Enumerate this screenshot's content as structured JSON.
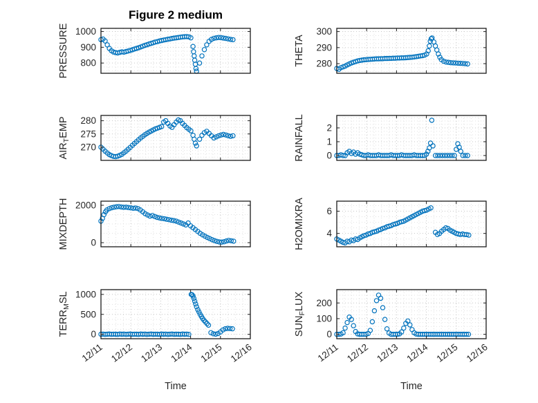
{
  "figure": {
    "title": "Figure 2 medium",
    "xlabel": "Time",
    "marker_color": "#0072BD",
    "x_ticks": [
      0,
      1,
      2,
      3,
      4,
      5
    ],
    "x_tick_labels": [
      "12/11",
      "12/12",
      "12/13",
      "12/14",
      "12/15",
      "12/16"
    ]
  },
  "chart_data": [
    {
      "type": "scatter",
      "ylabel": "PRESSURE",
      "ylabel_parts": [
        {
          "t": "PRESSURE"
        }
      ],
      "yticks": [
        800,
        900,
        1000
      ],
      "ylim": [
        735,
        1020
      ],
      "xlim": [
        0,
        5
      ],
      "x": [
        0,
        0.07,
        0.14,
        0.21,
        0.28,
        0.35,
        0.42,
        0.49,
        0.56,
        0.63,
        0.7,
        0.77,
        0.84,
        0.91,
        0.98,
        1.05,
        1.12,
        1.19,
        1.26,
        1.33,
        1.4,
        1.47,
        1.54,
        1.61,
        1.68,
        1.75,
        1.82,
        1.89,
        1.96,
        2.03,
        2.1,
        2.17,
        2.24,
        2.31,
        2.38,
        2.45,
        2.52,
        2.59,
        2.66,
        2.73,
        2.8,
        2.87,
        2.94,
        3.01,
        3.08,
        3.1,
        3.12,
        3.14,
        3.16,
        3.18,
        3.2,
        3.3,
        3.38,
        3.46,
        3.54,
        3.62,
        3.7,
        3.78,
        3.86,
        3.94,
        4.02,
        4.1,
        4.18,
        4.26,
        4.34,
        4.42
      ],
      "y": [
        948,
        952,
        940,
        915,
        893,
        878,
        870,
        866,
        864,
        868,
        871,
        869,
        873,
        876,
        880,
        884,
        889,
        893,
        897,
        902,
        907,
        912,
        916,
        921,
        925,
        929,
        933,
        936,
        940,
        943,
        946,
        948,
        951,
        953,
        956,
        958,
        960,
        962,
        964,
        966,
        967,
        968,
        966,
        960,
        905,
        872,
        845,
        818,
        792,
        765,
        748,
        800,
        845,
        885,
        915,
        938,
        950,
        957,
        960,
        962,
        961,
        958,
        956,
        953,
        950,
        948
      ]
    },
    {
      "type": "scatter",
      "ylabel": "THETA",
      "ylabel_parts": [
        {
          "t": "THETA"
        }
      ],
      "yticks": [
        280,
        290,
        300
      ],
      "ylim": [
        274,
        302
      ],
      "xlim": [
        0,
        5
      ],
      "x": [
        0,
        0.07,
        0.14,
        0.21,
        0.28,
        0.35,
        0.42,
        0.49,
        0.56,
        0.63,
        0.7,
        0.77,
        0.84,
        0.91,
        0.98,
        1.05,
        1.12,
        1.19,
        1.26,
        1.33,
        1.4,
        1.47,
        1.54,
        1.61,
        1.68,
        1.75,
        1.82,
        1.89,
        1.96,
        2.03,
        2.1,
        2.17,
        2.24,
        2.31,
        2.38,
        2.45,
        2.52,
        2.59,
        2.66,
        2.73,
        2.8,
        2.87,
        2.94,
        3.01,
        3.06,
        3.1,
        3.13,
        3.16,
        3.19,
        3.25,
        3.3,
        3.35,
        3.4,
        3.45,
        3.5,
        3.58,
        3.66,
        3.74,
        3.82,
        3.9,
        3.98,
        4.06,
        4.14,
        4.22,
        4.3,
        4.38
      ],
      "y": [
        277,
        276.5,
        277.5,
        278,
        278.5,
        279.2,
        279.8,
        280.4,
        280.9,
        281.3,
        281.7,
        282,
        282.2,
        282.4,
        282.5,
        282.6,
        282.7,
        282.8,
        282.9,
        283,
        283,
        283.1,
        283.1,
        283.2,
        283.2,
        283.3,
        283.3,
        283.4,
        283.4,
        283.5,
        283.5,
        283.6,
        283.6,
        283.7,
        283.8,
        283.9,
        284,
        284.2,
        284.4,
        284.6,
        284.8,
        285,
        285.3,
        286,
        288,
        291,
        294,
        295.5,
        296,
        293.5,
        291,
        288.5,
        286,
        284,
        282.5,
        281.5,
        281,
        280.8,
        280.6,
        280.5,
        280.4,
        280.3,
        280.2,
        280.1,
        280,
        279.8
      ]
    },
    {
      "type": "scatter",
      "ylabel": "AIR_TEMP",
      "ylabel_parts": [
        {
          "t": "AIR"
        },
        {
          "t": "T",
          "sub": true
        },
        {
          "t": "EMP"
        }
      ],
      "yticks": [
        270,
        275,
        280
      ],
      "ylim": [
        265,
        282
      ],
      "xlim": [
        0,
        5
      ],
      "x": [
        0,
        0.07,
        0.14,
        0.21,
        0.28,
        0.35,
        0.42,
        0.49,
        0.56,
        0.63,
        0.7,
        0.77,
        0.84,
        0.91,
        0.98,
        1.05,
        1.12,
        1.19,
        1.26,
        1.33,
        1.4,
        1.47,
        1.54,
        1.61,
        1.68,
        1.75,
        1.82,
        1.89,
        1.96,
        2.03,
        2.1,
        2.17,
        2.24,
        2.31,
        2.38,
        2.45,
        2.52,
        2.59,
        2.66,
        2.73,
        2.8,
        2.87,
        2.94,
        3.01,
        3.08,
        3.12,
        3.16,
        3.2,
        3.3,
        3.38,
        3.46,
        3.54,
        3.62,
        3.7,
        3.78,
        3.86,
        3.94,
        4.02,
        4.1,
        4.18,
        4.26,
        4.34,
        4.42
      ],
      "y": [
        270,
        269.3,
        268.5,
        267.8,
        267.2,
        266.8,
        266.5,
        266.4,
        266.6,
        266.9,
        267.3,
        267.9,
        268.5,
        269.2,
        269.9,
        270.7,
        271.4,
        272.1,
        272.8,
        273.5,
        274.1,
        274.7,
        275.2,
        275.7,
        276.1,
        276.5,
        276.9,
        277.2,
        277.5,
        277.8,
        279.5,
        280,
        279,
        278,
        277.5,
        278.5,
        279.5,
        280.3,
        280,
        279,
        278.2,
        277.4,
        276.8,
        276.2,
        274.5,
        273,
        271.5,
        270.5,
        273,
        274.5,
        275.5,
        276,
        275.2,
        274.3,
        273.5,
        273.9,
        274.3,
        274.6,
        274.8,
        274.6,
        274.3,
        274.1,
        274.3
      ]
    },
    {
      "type": "scatter",
      "ylabel": "RAINFALL",
      "ylabel_parts": [
        {
          "t": "RAINFALL"
        }
      ],
      "yticks": [
        0,
        1,
        2
      ],
      "ylim": [
        -0.35,
        2.9
      ],
      "xlim": [
        0,
        5
      ],
      "x": [
        0,
        0.07,
        0.14,
        0.21,
        0.28,
        0.35,
        0.42,
        0.49,
        0.56,
        0.63,
        0.7,
        0.77,
        0.84,
        0.91,
        0.98,
        1.05,
        1.12,
        1.19,
        1.26,
        1.33,
        1.4,
        1.47,
        1.54,
        1.61,
        1.68,
        1.75,
        1.82,
        1.89,
        1.96,
        2.03,
        2.1,
        2.17,
        2.24,
        2.31,
        2.38,
        2.45,
        2.52,
        2.59,
        2.66,
        2.73,
        2.8,
        2.87,
        2.94,
        3,
        3.05,
        3.1,
        3.14,
        3.18,
        3.22,
        3.3,
        3.38,
        3.46,
        3.54,
        3.62,
        3.7,
        3.78,
        3.86,
        3.94,
        4,
        4.05,
        4.1,
        4.15,
        4.22,
        4.3,
        4.38
      ],
      "y": [
        0,
        0,
        0.05,
        0,
        0,
        0.2,
        0.3,
        0.15,
        0.25,
        0.1,
        0.2,
        0.1,
        0.05,
        0,
        0,
        0.05,
        0,
        0,
        0,
        0,
        0.05,
        0,
        0,
        0,
        0,
        0,
        0.05,
        0,
        0,
        0,
        0,
        0.05,
        0,
        0,
        0,
        0,
        0,
        0.05,
        0,
        0,
        0,
        0,
        0,
        0.1,
        0.3,
        0.55,
        0.9,
        2.55,
        0.7,
        0,
        0,
        0,
        0,
        0,
        0,
        0,
        0,
        0,
        0.45,
        0.85,
        0.6,
        0.3,
        0,
        0,
        0
      ]
    },
    {
      "type": "scatter",
      "ylabel": "MIXDEPTH",
      "ylabel_parts": [
        {
          "t": "MIXDEPTH"
        }
      ],
      "yticks": [
        0,
        2000
      ],
      "ylim": [
        -220,
        2220
      ],
      "xlim": [
        0,
        5
      ],
      "x": [
        0,
        0.05,
        0.1,
        0.15,
        0.2,
        0.28,
        0.36,
        0.44,
        0.52,
        0.6,
        0.68,
        0.76,
        0.84,
        0.92,
        1,
        1.08,
        1.16,
        1.24,
        1.32,
        1.4,
        1.48,
        1.56,
        1.64,
        1.72,
        1.8,
        1.88,
        1.96,
        2.04,
        2.12,
        2.2,
        2.28,
        2.36,
        2.44,
        2.52,
        2.6,
        2.68,
        2.76,
        2.84,
        2.92,
        3,
        3.08,
        3.16,
        3.24,
        3.32,
        3.4,
        3.48,
        3.56,
        3.64,
        3.72,
        3.8,
        3.88,
        3.96,
        4.04,
        4.12,
        4.2,
        4.28,
        4.36,
        4.44
      ],
      "y": [
        1150,
        1300,
        1500,
        1650,
        1750,
        1820,
        1870,
        1900,
        1920,
        1930,
        1910,
        1890,
        1900,
        1880,
        1860,
        1840,
        1850,
        1820,
        1750,
        1650,
        1550,
        1480,
        1420,
        1450,
        1400,
        1350,
        1320,
        1300,
        1280,
        1250,
        1230,
        1200,
        1180,
        1150,
        1100,
        1050,
        1000,
        950,
        1050,
        900,
        800,
        700,
        600,
        500,
        420,
        350,
        280,
        220,
        160,
        110,
        70,
        40,
        30,
        50,
        90,
        120,
        100,
        80
      ]
    },
    {
      "type": "scatter",
      "ylabel": "H2OMIXRA",
      "ylabel_parts": [
        {
          "t": "H2OMIXRA"
        }
      ],
      "yticks": [
        4,
        6
      ],
      "ylim": [
        2.8,
        6.9
      ],
      "xlim": [
        0,
        5
      ],
      "x": [
        0,
        0.07,
        0.14,
        0.21,
        0.28,
        0.35,
        0.42,
        0.49,
        0.56,
        0.63,
        0.7,
        0.77,
        0.84,
        0.91,
        0.98,
        1.05,
        1.12,
        1.19,
        1.26,
        1.33,
        1.4,
        1.47,
        1.54,
        1.61,
        1.68,
        1.75,
        1.82,
        1.89,
        1.96,
        2.03,
        2.1,
        2.17,
        2.24,
        2.31,
        2.38,
        2.45,
        2.52,
        2.59,
        2.66,
        2.73,
        2.8,
        2.87,
        2.94,
        3.01,
        3.08,
        3.15,
        3.3,
        3.37,
        3.44,
        3.51,
        3.58,
        3.65,
        3.72,
        3.79,
        3.86,
        3.93,
        4,
        4.07,
        4.14,
        4.21,
        4.28,
        4.35,
        4.42
      ],
      "y": [
        3.5,
        3.4,
        3.3,
        3.2,
        3.15,
        3.3,
        3.25,
        3.4,
        3.35,
        3.5,
        3.45,
        3.6,
        3.7,
        3.8,
        3.85,
        3.95,
        4,
        4.1,
        4.15,
        4.2,
        4.3,
        4.35,
        4.45,
        4.5,
        4.6,
        4.65,
        4.7,
        4.8,
        4.85,
        4.9,
        5,
        5.05,
        5.1,
        5.2,
        5.3,
        5.4,
        5.5,
        5.6,
        5.7,
        5.8,
        5.9,
        6,
        6.05,
        6.1,
        6.2,
        6.3,
        4.1,
        3.9,
        4,
        4.2,
        4.35,
        4.5,
        4.45,
        4.3,
        4.2,
        4.1,
        4,
        3.95,
        3.9,
        3.95,
        3.9,
        3.9,
        3.85
      ]
    },
    {
      "type": "scatter",
      "ylabel": "TERR_MSL",
      "ylabel_parts": [
        {
          "t": "TERR"
        },
        {
          "t": "M",
          "sub": true
        },
        {
          "t": "SL"
        }
      ],
      "yticks": [
        0,
        500,
        1000
      ],
      "ylim": [
        -110,
        1120
      ],
      "xlim": [
        0,
        5
      ],
      "x": [
        0,
        0.07,
        0.14,
        0.21,
        0.28,
        0.35,
        0.42,
        0.49,
        0.56,
        0.63,
        0.7,
        0.77,
        0.84,
        0.91,
        0.98,
        1.05,
        1.12,
        1.19,
        1.26,
        1.33,
        1.4,
        1.47,
        1.54,
        1.61,
        1.68,
        1.75,
        1.82,
        1.89,
        1.96,
        2.03,
        2.1,
        2.17,
        2.24,
        2.31,
        2.38,
        2.45,
        2.52,
        2.59,
        2.66,
        2.73,
        2.8,
        2.87,
        2.94,
        3.02,
        3.05,
        3.08,
        3.11,
        3.14,
        3.17,
        3.2,
        3.24,
        3.28,
        3.32,
        3.36,
        3.4,
        3.45,
        3.5,
        3.55,
        3.6,
        3.68,
        3.76,
        3.84,
        3.92,
        4,
        4.08,
        4.16,
        4.24,
        4.32,
        4.4
      ],
      "y": [
        2,
        6,
        0,
        4,
        8,
        1,
        5,
        3,
        0,
        7,
        2,
        6,
        0,
        4,
        8,
        1,
        5,
        3,
        0,
        7,
        2,
        6,
        0,
        4,
        8,
        1,
        5,
        3,
        0,
        7,
        2,
        6,
        0,
        4,
        8,
        1,
        5,
        3,
        0,
        7,
        2,
        6,
        0,
        1000,
        990,
        960,
        900,
        830,
        760,
        690,
        620,
        560,
        500,
        450,
        400,
        350,
        310,
        270,
        230,
        40,
        15,
        5,
        20,
        60,
        110,
        140,
        150,
        145,
        140
      ]
    },
    {
      "type": "scatter",
      "ylabel": "SUN_FLUX",
      "ylabel_parts": [
        {
          "t": "SUN"
        },
        {
          "t": "F",
          "sub": true
        },
        {
          "t": "LUX"
        }
      ],
      "yticks": [
        0,
        100,
        200
      ],
      "ylim": [
        -28,
        285
      ],
      "xlim": [
        0,
        5
      ],
      "x": [
        0,
        0.07,
        0.14,
        0.21,
        0.28,
        0.35,
        0.42,
        0.49,
        0.56,
        0.63,
        0.7,
        0.77,
        0.84,
        0.91,
        0.98,
        1.05,
        1.12,
        1.19,
        1.26,
        1.33,
        1.4,
        1.47,
        1.54,
        1.61,
        1.68,
        1.75,
        1.82,
        1.89,
        1.96,
        2.03,
        2.1,
        2.17,
        2.24,
        2.31,
        2.38,
        2.45,
        2.52,
        2.59,
        2.66,
        2.73,
        2.8,
        2.87,
        2.94,
        3.01,
        3.08,
        3.15,
        3.22,
        3.29,
        3.36,
        3.43,
        3.5,
        3.57,
        3.64,
        3.71,
        3.78,
        3.85,
        3.92,
        3.99,
        4.06,
        4.13,
        4.2,
        4.27,
        4.34,
        4.41
      ],
      "y": [
        0,
        0,
        2,
        10,
        40,
        75,
        110,
        95,
        55,
        18,
        3,
        0,
        0,
        0,
        0,
        5,
        25,
        80,
        150,
        215,
        250,
        230,
        170,
        95,
        35,
        8,
        0,
        0,
        0,
        0,
        3,
        15,
        40,
        70,
        85,
        60,
        30,
        10,
        2,
        0,
        0,
        0,
        0,
        0,
        0,
        0,
        0,
        0,
        0,
        0,
        0,
        0,
        0,
        0,
        0,
        0,
        0,
        0,
        0,
        0,
        0,
        0,
        0,
        0
      ]
    }
  ]
}
